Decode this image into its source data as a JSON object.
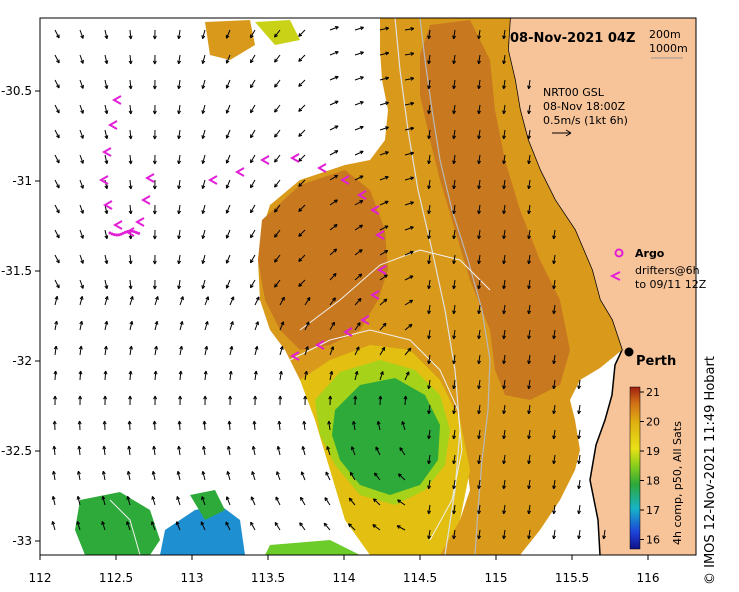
{
  "header": {
    "timestamp": "08-Nov-2021 04Z",
    "contour_200": "200m",
    "contour_1000": "1000m"
  },
  "current_info": {
    "line1": "NRT00 GSL",
    "line2": "08-Nov 18:00Z",
    "line3": "0.5m/s (1kt 6h)"
  },
  "legend": {
    "argo_label": "Argo",
    "drifters_line1": "drifters@6h",
    "drifters_line2": "to 09/11 12Z"
  },
  "places": {
    "perth": "Perth"
  },
  "colorbar": {
    "ticks": [
      "21",
      "20",
      "19",
      "18",
      "17",
      "16"
    ],
    "label": "4h comp, p50, All Sats"
  },
  "axes": {
    "x_ticks": [
      "112",
      "112.5",
      "113",
      "113.5",
      "114",
      "114.5",
      "115",
      "115.5",
      "116"
    ],
    "y_ticks": [
      "-30.5",
      "-31",
      "-31.5",
      "-32",
      "-32.5",
      "-33"
    ]
  },
  "credit": "© IMOS 12-Nov-2021 11:49 Hobart",
  "colors": {
    "land": "#f7c49a",
    "warm_core": "#c8781e",
    "warm": "#d99a1c",
    "mid": "#e2bf10",
    "cool": "#a6d21a",
    "cold": "#2eaa3a",
    "drifter": "#e21fd6"
  }
}
